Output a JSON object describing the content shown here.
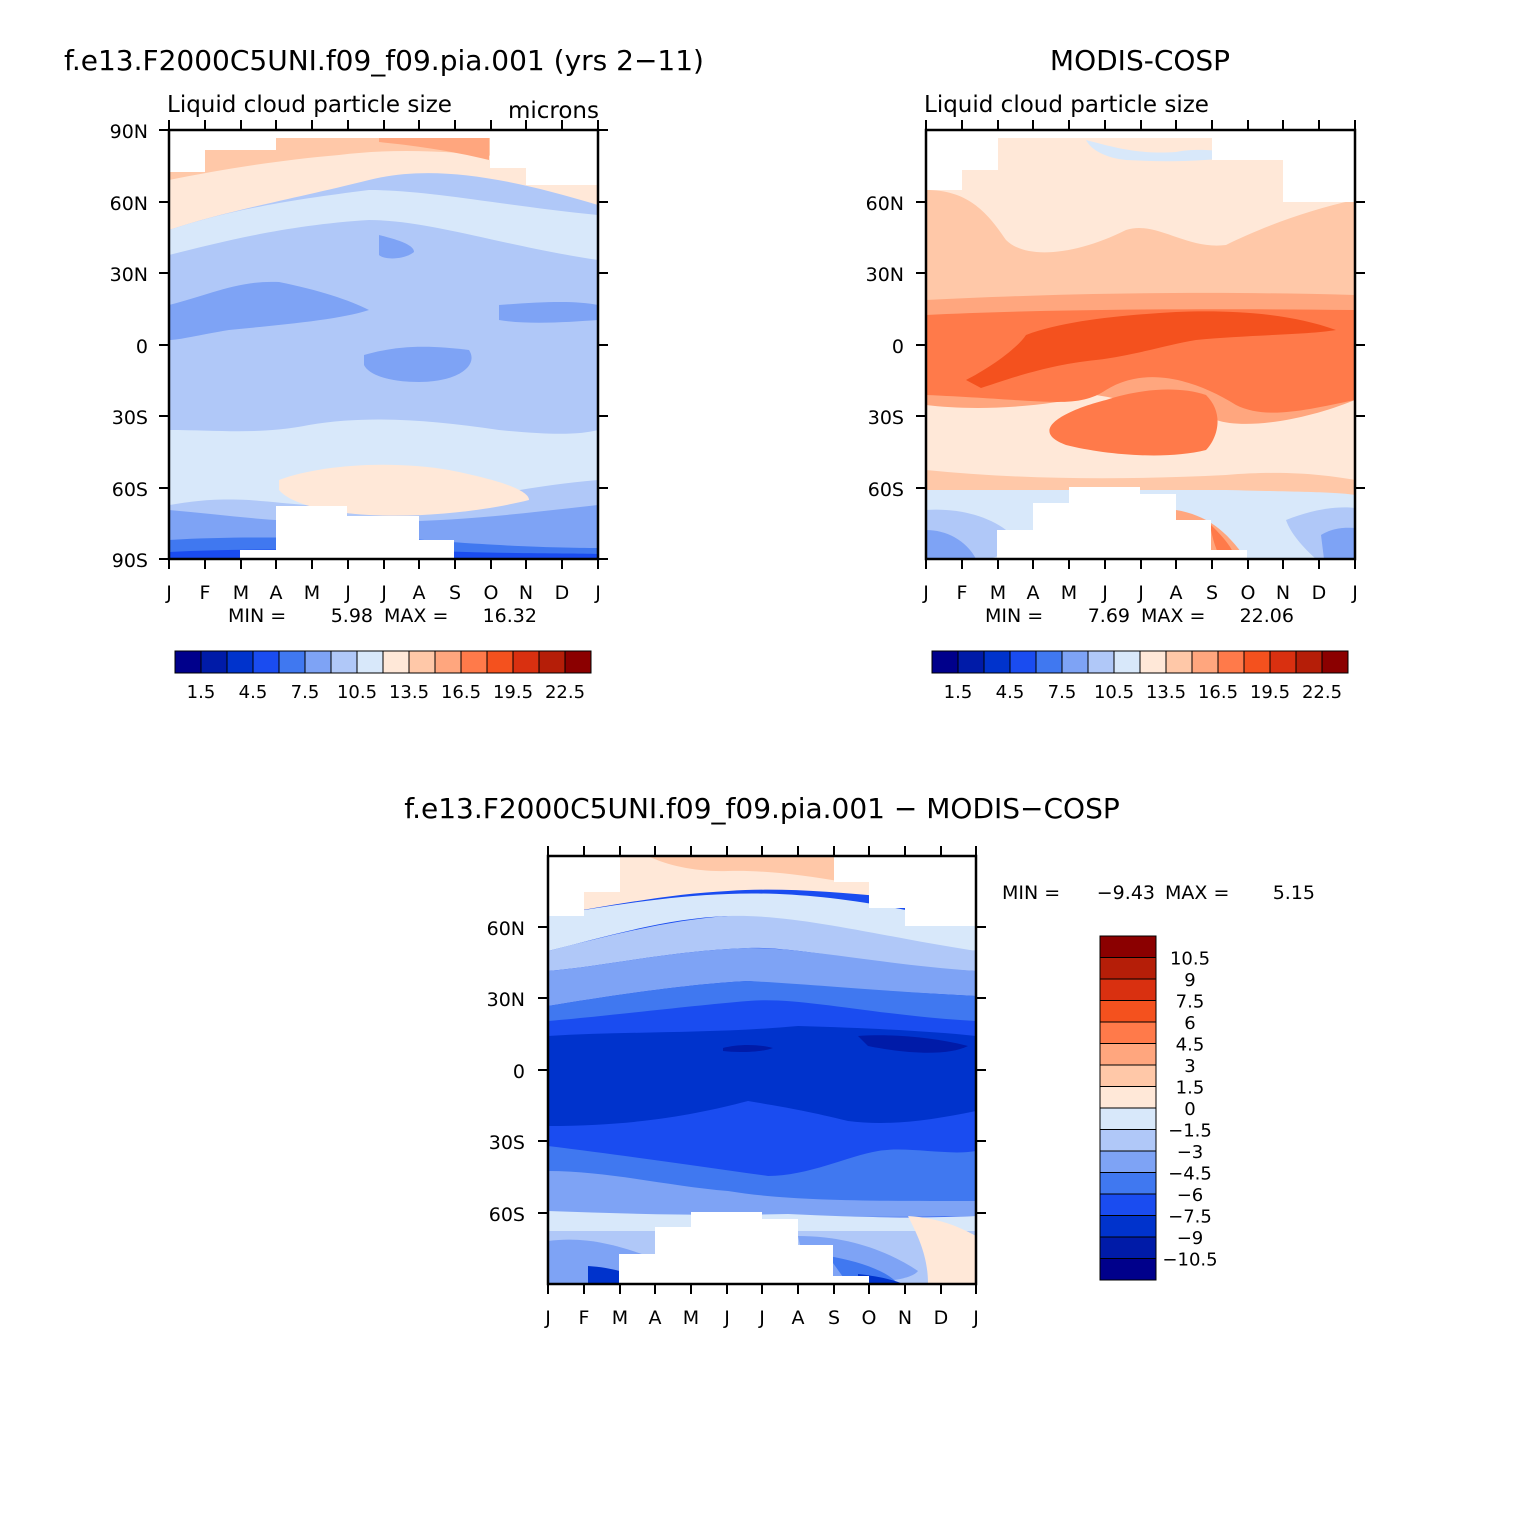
{
  "chart_data": [
    {
      "type": "heatmap",
      "title": "f.e13.F2000C5UNI.f09_f09.pia.001 (yrs 2-11)",
      "subtitle": "Liquid cloud particle size",
      "units": "microns",
      "x_tick_labels": [
        "J",
        "F",
        "M",
        "A",
        "M",
        "J",
        "J",
        "A",
        "S",
        "O",
        "N",
        "D",
        "J"
      ],
      "y_tick_labels": [
        "90N",
        "60N",
        "30N",
        "0",
        "30S",
        "60S",
        "90S"
      ],
      "ylim": [
        -90,
        90
      ],
      "min_label": "MIN =",
      "min_value": "5.98",
      "max_label": "MAX =",
      "max_value": "16.32",
      "colorbar_labels": [
        "1.5",
        "4.5",
        "7.5",
        "10.5",
        "13.5",
        "16.5",
        "19.5",
        "22.5"
      ],
      "colorbar_colors": [
        "#00008b",
        "#001ba8",
        "#0033cc",
        "#1a4cf0",
        "#4078f0",
        "#7ea3f5",
        "#b0c8f8",
        "#d8e8fa",
        "#ffe8d8",
        "#ffc8a8",
        "#ffa67e",
        "#ff7a4a",
        "#f4511e",
        "#d93010",
        "#b51e08",
        "#8b0000"
      ],
      "zones": [
        {
          "lat_range": [
            70,
            90
          ],
          "approx_value": 14.5
        },
        {
          "lat_range": [
            55,
            70
          ],
          "approx_value": 12.5
        },
        {
          "lat_range": [
            -40,
            55
          ],
          "approx_value": 10.0
        },
        {
          "lat_range": [
            -70,
            -40
          ],
          "approx_value": 11.5
        },
        {
          "lat_range": [
            -90,
            -70
          ],
          "approx_value": 8.5
        }
      ]
    },
    {
      "type": "heatmap",
      "title": "MODIS-COSP",
      "subtitle": "Liquid cloud particle size",
      "x_tick_labels": [
        "J",
        "F",
        "M",
        "A",
        "M",
        "J",
        "J",
        "A",
        "S",
        "O",
        "N",
        "D",
        "J"
      ],
      "y_tick_labels": [
        "60N",
        "30N",
        "0",
        "30S",
        "60S"
      ],
      "ylim": [
        -90,
        90
      ],
      "min_label": "MIN =",
      "min_value": "7.69",
      "max_label": "MAX =",
      "max_value": "22.06",
      "colorbar_labels": [
        "1.5",
        "4.5",
        "7.5",
        "10.5",
        "13.5",
        "16.5",
        "19.5",
        "22.5"
      ],
      "colorbar_colors": [
        "#00008b",
        "#001ba8",
        "#0033cc",
        "#1a4cf0",
        "#4078f0",
        "#7ea3f5",
        "#b0c8f8",
        "#d8e8fa",
        "#ffe8d8",
        "#ffc8a8",
        "#ffa67e",
        "#ff7a4a",
        "#f4511e",
        "#d93010",
        "#b51e08",
        "#8b0000"
      ],
      "zones": [
        {
          "lat_range": [
            30,
            90
          ],
          "approx_value": 13.5
        },
        {
          "lat_range": [
            15,
            30
          ],
          "approx_value": 15.5
        },
        {
          "lat_range": [
            -25,
            15
          ],
          "approx_value": 19.0
        },
        {
          "lat_range": [
            -55,
            -25
          ],
          "approx_value": 16.5
        },
        {
          "lat_range": [
            -90,
            -55
          ],
          "approx_value": 10.0
        }
      ]
    },
    {
      "type": "heatmap",
      "title": "f.e13.F2000C5UNI.f09_f09.pia.001 - MODIS-COSP",
      "x_tick_labels": [
        "J",
        "F",
        "M",
        "A",
        "M",
        "J",
        "J",
        "A",
        "S",
        "O",
        "N",
        "D",
        "J"
      ],
      "y_tick_labels": [
        "60N",
        "30N",
        "0",
        "30S",
        "60S"
      ],
      "ylim": [
        -90,
        90
      ],
      "min_label": "MIN =",
      "min_value": "-9.43",
      "max_label": "MAX =",
      "max_value": "5.15",
      "colorbar_labels": [
        "10.5",
        "9",
        "7.5",
        "6",
        "4.5",
        "3",
        "1.5",
        "0",
        "-1.5",
        "-3",
        "-4.5",
        "-6",
        "-7.5",
        "-9",
        "-10.5"
      ],
      "colorbar_colors": [
        "#8b0000",
        "#b51e08",
        "#d93010",
        "#f4511e",
        "#ff7a4a",
        "#ffa67e",
        "#ffc8a8",
        "#ffe8d8",
        "#d8e8fa",
        "#b0c8f8",
        "#7ea3f5",
        "#4078f0",
        "#1a4cf0",
        "#0033cc",
        "#001ba8",
        "#00008b"
      ],
      "zones": [
        {
          "lat_range": [
            70,
            90
          ],
          "approx_value": 2.0
        },
        {
          "lat_range": [
            45,
            70
          ],
          "approx_value": -2.0
        },
        {
          "lat_range": [
            20,
            45
          ],
          "approx_value": -5.5
        },
        {
          "lat_range": [
            -25,
            20
          ],
          "approx_value": -8.5
        },
        {
          "lat_range": [
            -50,
            -25
          ],
          "approx_value": -6.0
        },
        {
          "lat_range": [
            -65,
            -50
          ],
          "approx_value": -3.5
        },
        {
          "lat_range": [
            -90,
            -65
          ],
          "approx_value": -1.0
        }
      ]
    }
  ]
}
